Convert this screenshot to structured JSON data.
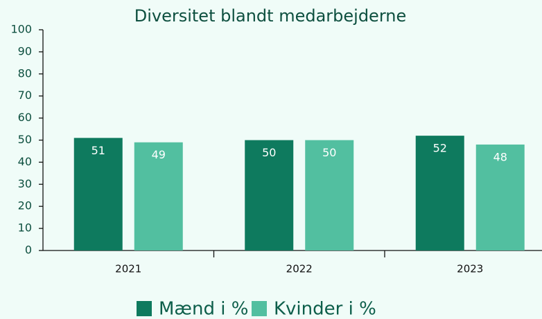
{
  "chart_data": {
    "type": "bar",
    "title": "Diversitet blandt medarbejderne",
    "categories": [
      "2021",
      "2022",
      "2023"
    ],
    "series": [
      {
        "name": "Mænd i %",
        "color": "#0e7a5e",
        "values": [
          51,
          50,
          52
        ]
      },
      {
        "name": "Kvinder i %",
        "color": "#52bfa0",
        "values": [
          49,
          50,
          48
        ]
      }
    ],
    "ylim": [
      0,
      100
    ],
    "yticks": [
      0,
      10,
      20,
      30,
      40,
      50,
      60,
      70,
      80,
      90,
      100
    ],
    "grid": false,
    "legend": "bottom"
  }
}
